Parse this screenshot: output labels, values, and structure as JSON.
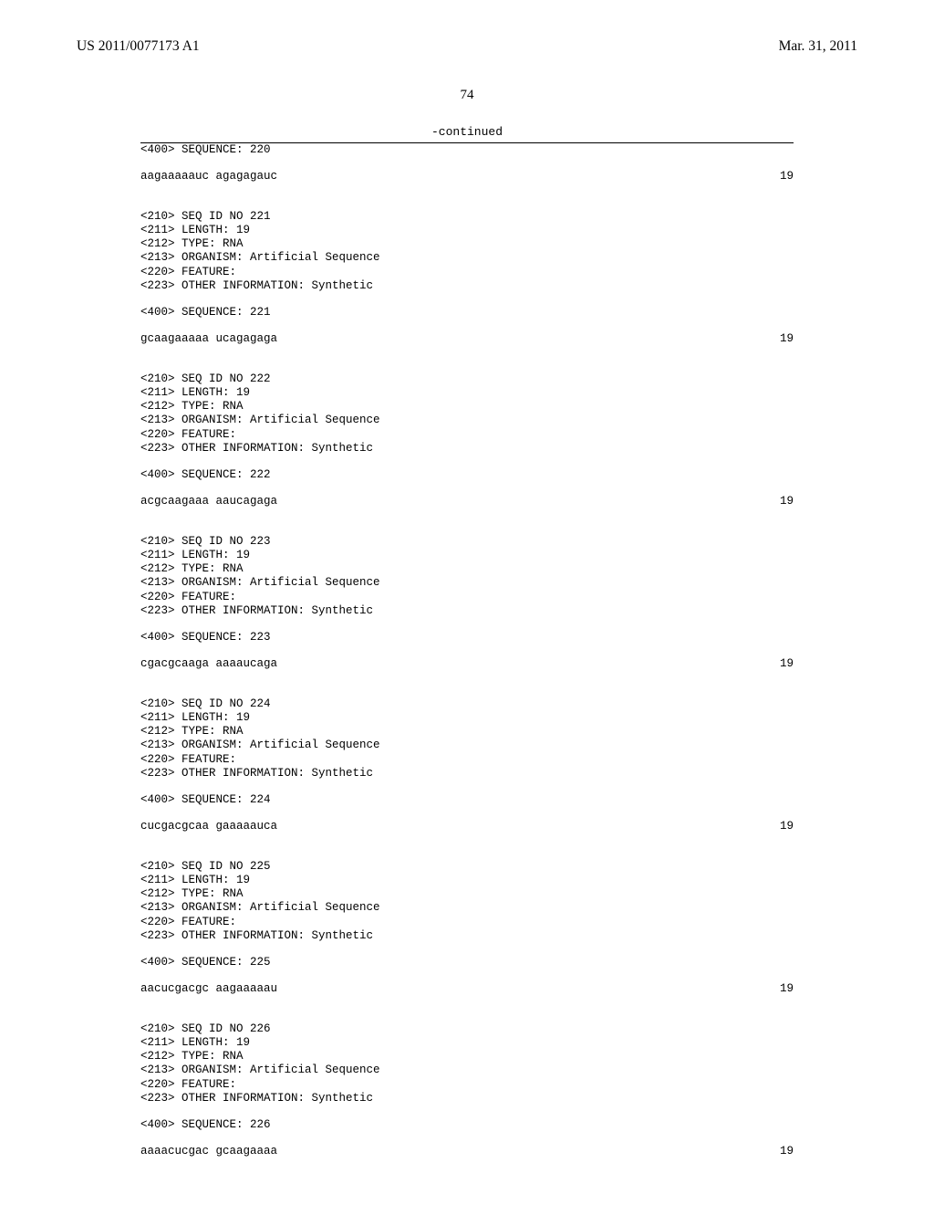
{
  "header": {
    "pub_number": "US 2011/0077173 A1",
    "pub_date": "Mar. 31, 2011"
  },
  "page_number": "74",
  "continued_label": "-continued",
  "sequences": [
    {
      "line_400": "<400> SEQUENCE: 220",
      "seq_left": "aagaaaaauc agagagauc",
      "seq_right": "19",
      "pre_lines": []
    },
    {
      "pre_lines": [
        "<210> SEQ ID NO 221",
        "<211> LENGTH: 19",
        "<212> TYPE: RNA",
        "<213> ORGANISM: Artificial Sequence",
        "<220> FEATURE:",
        "<223> OTHER INFORMATION: Synthetic"
      ],
      "line_400": "<400> SEQUENCE: 221",
      "seq_left": "gcaagaaaaa ucagagaga",
      "seq_right": "19"
    },
    {
      "pre_lines": [
        "<210> SEQ ID NO 222",
        "<211> LENGTH: 19",
        "<212> TYPE: RNA",
        "<213> ORGANISM: Artificial Sequence",
        "<220> FEATURE:",
        "<223> OTHER INFORMATION: Synthetic"
      ],
      "line_400": "<400> SEQUENCE: 222",
      "seq_left": "acgcaagaaa aaucagaga",
      "seq_right": "19"
    },
    {
      "pre_lines": [
        "<210> SEQ ID NO 223",
        "<211> LENGTH: 19",
        "<212> TYPE: RNA",
        "<213> ORGANISM: Artificial Sequence",
        "<220> FEATURE:",
        "<223> OTHER INFORMATION: Synthetic"
      ],
      "line_400": "<400> SEQUENCE: 223",
      "seq_left": "cgacgcaaga aaaaucaga",
      "seq_right": "19"
    },
    {
      "pre_lines": [
        "<210> SEQ ID NO 224",
        "<211> LENGTH: 19",
        "<212> TYPE: RNA",
        "<213> ORGANISM: Artificial Sequence",
        "<220> FEATURE:",
        "<223> OTHER INFORMATION: Synthetic"
      ],
      "line_400": "<400> SEQUENCE: 224",
      "seq_left": "cucgacgcaa gaaaaauca",
      "seq_right": "19"
    },
    {
      "pre_lines": [
        "<210> SEQ ID NO 225",
        "<211> LENGTH: 19",
        "<212> TYPE: RNA",
        "<213> ORGANISM: Artificial Sequence",
        "<220> FEATURE:",
        "<223> OTHER INFORMATION: Synthetic"
      ],
      "line_400": "<400> SEQUENCE: 225",
      "seq_left": "aacucgacgc aagaaaaau",
      "seq_right": "19"
    },
    {
      "pre_lines": [
        "<210> SEQ ID NO 226",
        "<211> LENGTH: 19",
        "<212> TYPE: RNA",
        "<213> ORGANISM: Artificial Sequence",
        "<220> FEATURE:",
        "<223> OTHER INFORMATION: Synthetic"
      ],
      "line_400": "<400> SEQUENCE: 226",
      "seq_left": "aaaacucgac gcaagaaaa",
      "seq_right": "19"
    }
  ]
}
